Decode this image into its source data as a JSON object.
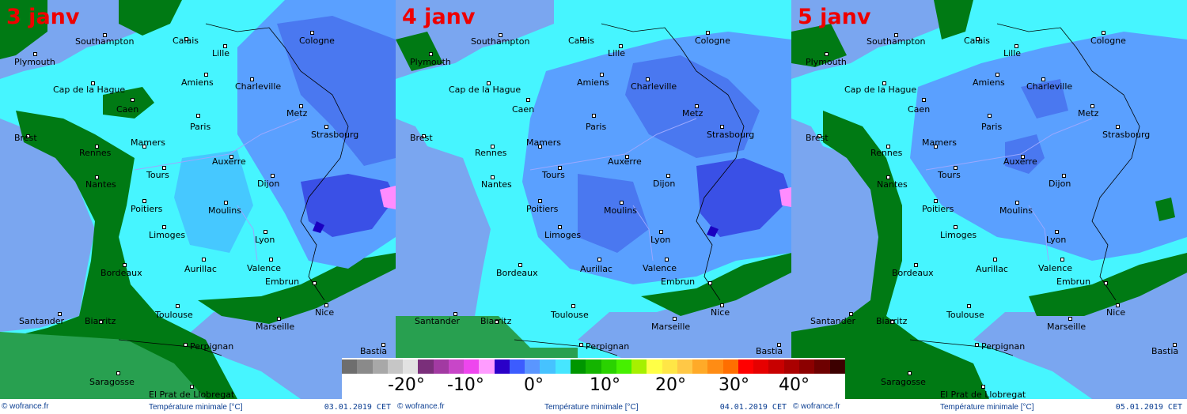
{
  "panels": [
    {
      "title": "3 janv",
      "footer_site": "© wofrance.fr",
      "footer_label": "Température minimale [°C]",
      "footer_date": "03.01.2019  CET"
    },
    {
      "title": "4 janv",
      "footer_site": "© wofrance.fr",
      "footer_label": "Température minimale [°C]",
      "footer_date": "04.01.2019  CET"
    },
    {
      "title": "5 janv",
      "footer_site": "© wofrance.fr",
      "footer_label": "Température minimale [°C]",
      "footer_date": "05.01.2019  CET"
    }
  ],
  "cities": [
    "Southampton",
    "Plymouth",
    "Calais",
    "Lille",
    "Cologne",
    "Amiens",
    "Charleville",
    "Cap de la Hague",
    "Caen",
    "Metz",
    "Paris",
    "Brest",
    "Mamers",
    "Strasbourg",
    "Rennes",
    "Auxerre",
    "Tours",
    "Nantes",
    "Dijon",
    "Moulins",
    "Poitiers",
    "Limoges",
    "Lyon",
    "Bordeaux",
    "Aurillac",
    "Valence",
    "Embrun",
    "Nice",
    "Toulouse",
    "Santander",
    "Biarritz",
    "Marseille",
    "Perpignan",
    "Bastia",
    "Saragosse",
    "El Prat de Llobregat"
  ],
  "legend": {
    "colors": [
      "#6e6e6e",
      "#8a8a8a",
      "#a8a8a8",
      "#c6c6c6",
      "#e2e2e2",
      "#7a2f7a",
      "#a23aa2",
      "#c846c8",
      "#ee46ee",
      "#ff9cff",
      "#2a00c8",
      "#3c5cff",
      "#5a96ff",
      "#46c2ff",
      "#46e6ff",
      "#009600",
      "#14b400",
      "#2ad200",
      "#46f000",
      "#a6f000",
      "#ffff46",
      "#ffe646",
      "#ffc846",
      "#ffaa28",
      "#ff8c14",
      "#ff6e00",
      "#ff0000",
      "#e60000",
      "#c80000",
      "#aa0000",
      "#8c0000",
      "#6e0000",
      "#3c0000"
    ],
    "ticks": [
      "-20°",
      "-10°",
      "0°",
      "10°",
      "20°",
      "30°",
      "40°"
    ]
  }
}
